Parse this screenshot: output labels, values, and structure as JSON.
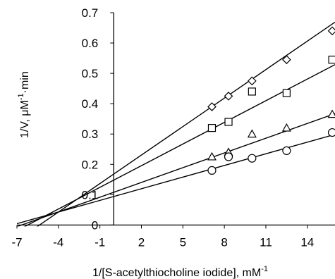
{
  "chart_data": {
    "type": "scatter",
    "xlabel": "1/[S-acetylthiocholine iodide], mM",
    "xlabel_superscript": "-1",
    "ylabel": "1/V, μM",
    "ylabel_superscript": "-1",
    "ylabel_suffix": "·min",
    "xlim": [
      -7,
      16
    ],
    "ylim": [
      -0.02,
      0.7
    ],
    "x_ticks": [
      -7,
      -4,
      -1,
      2,
      5,
      8,
      11,
      14
    ],
    "y_ticks": [
      0,
      0.1,
      0.2,
      0.3,
      0.4,
      0.5,
      0.6,
      0.7
    ],
    "x_tick_labels": [
      "-7",
      "-4",
      "-1",
      "2",
      "5",
      "8",
      "11",
      "14"
    ],
    "y_tick_labels": [
      "0",
      "0.1",
      "0.2",
      "0.3",
      "0.4",
      "0.5",
      "0.6",
      "0.7"
    ],
    "y_axis_at_x": 0,
    "grid": false,
    "legend": "none",
    "series": [
      {
        "marker": "diamond",
        "x": [
          7.1,
          8.3,
          10,
          12.5,
          15.8
        ],
        "y": [
          0.39,
          0.425,
          0.475,
          0.545,
          0.64
        ],
        "fit": {
          "slope": 0.0313,
          "intercept": 0.168,
          "x_range": [
            -7,
            16
          ]
        }
      },
      {
        "marker": "square",
        "x": [
          7.1,
          8.3,
          10,
          12.5,
          15.8
        ],
        "y": [
          0.32,
          0.34,
          0.44,
          0.435,
          0.545
        ],
        "fit": {
          "slope": 0.0238,
          "intercept": 0.148,
          "x_range": [
            -7,
            16
          ]
        }
      },
      {
        "marker": "triangle",
        "x": [
          7.1,
          8.3,
          10,
          12.5,
          15.8
        ],
        "y": [
          0.225,
          0.24,
          0.3,
          0.32,
          0.365
        ],
        "fit": {
          "slope": 0.0162,
          "intercept": 0.108,
          "x_range": [
            -7,
            16
          ]
        }
      },
      {
        "marker": "circle",
        "x": [
          7.1,
          8.3,
          10,
          12.5,
          15.8
        ],
        "y": [
          0.18,
          0.225,
          0.22,
          0.245,
          0.305
        ],
        "fit": {
          "slope": 0.0128,
          "intercept": 0.094,
          "x_range": [
            -7,
            16
          ]
        }
      }
    ]
  }
}
